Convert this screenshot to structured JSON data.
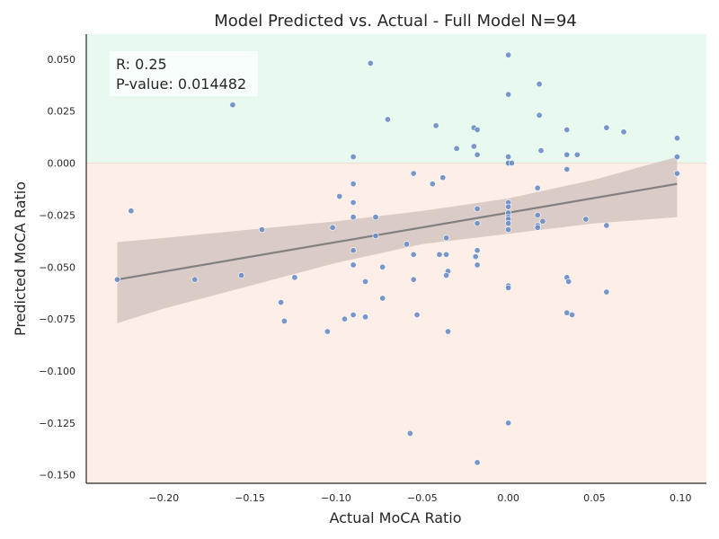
{
  "chart_data": {
    "type": "scatter",
    "title": "Model Predicted vs. Actual - Full Model  N=94",
    "xlabel": "Actual MoCA Ratio",
    "ylabel": "Predicted MoCA Ratio",
    "xlim": [
      -0.245,
      0.115
    ],
    "ylim": [
      -0.154,
      0.062
    ],
    "xticks": [
      -0.2,
      -0.15,
      -0.1,
      -0.05,
      0.0,
      0.05,
      0.1
    ],
    "xtick_labels": [
      "−0.20",
      "−0.15",
      "−0.10",
      "−0.05",
      "0.00",
      "0.05",
      "0.10"
    ],
    "yticks": [
      0.05,
      0.025,
      0.0,
      -0.025,
      -0.05,
      -0.075,
      -0.1,
      -0.125,
      -0.15
    ],
    "ytick_labels": [
      "0.050",
      "0.025",
      "0.000",
      "−0.025",
      "−0.050",
      "−0.075",
      "−0.100",
      "−0.125",
      "−0.150"
    ],
    "grid": false,
    "background_regions": [
      {
        "y_from": 0.0,
        "y_to": 0.062,
        "color": "#e8faf0"
      },
      {
        "y_from": -0.154,
        "y_to": 0.0,
        "color": "#fdeee8"
      }
    ],
    "annotation": {
      "r_text": "R: 0.25",
      "p_text": "P-value: 0.014482",
      "position": "top-left"
    },
    "regression": {
      "x": [
        -0.227,
        0.098
      ],
      "y": [
        -0.056,
        -0.01
      ],
      "color": "#808080",
      "ci": {
        "x": [
          -0.227,
          -0.2,
          -0.15,
          -0.1,
          -0.05,
          0.0,
          0.05,
          0.098
        ],
        "upper": [
          -0.038,
          -0.036,
          -0.032,
          -0.028,
          -0.023,
          -0.017,
          -0.008,
          0.003
        ],
        "lower": [
          -0.077,
          -0.07,
          -0.059,
          -0.048,
          -0.039,
          -0.034,
          -0.029,
          -0.026
        ],
        "color": "#d4c4bf"
      }
    },
    "series": [
      {
        "color": "#6a8cc5",
        "points": [
          [
            0.0,
            0.052
          ],
          [
            -0.08,
            0.048
          ],
          [
            0.018,
            0.038
          ],
          [
            0.0,
            0.033
          ],
          [
            -0.16,
            0.028
          ],
          [
            0.018,
            0.023
          ],
          [
            -0.07,
            0.021
          ],
          [
            -0.042,
            0.018
          ],
          [
            -0.02,
            0.017
          ],
          [
            -0.018,
            0.016
          ],
          [
            0.034,
            0.016
          ],
          [
            0.057,
            0.017
          ],
          [
            0.067,
            0.015
          ],
          [
            0.098,
            0.012
          ],
          [
            -0.03,
            0.007
          ],
          [
            -0.02,
            0.008
          ],
          [
            0.019,
            0.006
          ],
          [
            -0.09,
            0.003
          ],
          [
            -0.018,
            0.004
          ],
          [
            0.0,
            0.003
          ],
          [
            0.034,
            0.004
          ],
          [
            0.04,
            0.004
          ],
          [
            0.098,
            0.003
          ],
          [
            0.0,
            0.0
          ],
          [
            0.0,
            0.0
          ],
          [
            0.034,
            -0.003
          ],
          [
            -0.055,
            -0.005
          ],
          [
            0.098,
            -0.005
          ],
          [
            -0.038,
            -0.007
          ],
          [
            -0.09,
            -0.01
          ],
          [
            -0.044,
            -0.01
          ],
          [
            0.017,
            -0.012
          ],
          [
            -0.098,
            -0.016
          ],
          [
            -0.09,
            -0.019
          ],
          [
            0.0,
            -0.019
          ],
          [
            0.0,
            -0.021
          ],
          [
            -0.018,
            -0.022
          ],
          [
            -0.219,
            -0.023
          ],
          [
            0.0,
            -0.024
          ],
          [
            0.017,
            -0.025
          ],
          [
            -0.09,
            -0.026
          ],
          [
            -0.077,
            -0.026
          ],
          [
            0.0,
            -0.026
          ],
          [
            0.0,
            -0.027
          ],
          [
            0.045,
            -0.027
          ],
          [
            -0.018,
            -0.029
          ],
          [
            0.0,
            -0.029
          ],
          [
            0.02,
            -0.028
          ],
          [
            0.017,
            -0.03
          ],
          [
            0.057,
            -0.03
          ],
          [
            -0.102,
            -0.031
          ],
          [
            0.017,
            -0.031
          ],
          [
            0.0,
            -0.032
          ],
          [
            -0.143,
            -0.032
          ],
          [
            -0.077,
            -0.035
          ],
          [
            -0.036,
            -0.036
          ],
          [
            -0.059,
            -0.039
          ],
          [
            -0.018,
            -0.042
          ],
          [
            -0.09,
            -0.042
          ],
          [
            -0.04,
            -0.044
          ],
          [
            -0.036,
            -0.044
          ],
          [
            -0.055,
            -0.044
          ],
          [
            -0.019,
            -0.045
          ],
          [
            -0.09,
            -0.049
          ],
          [
            -0.018,
            -0.049
          ],
          [
            -0.073,
            -0.05
          ],
          [
            -0.035,
            -0.052
          ],
          [
            -0.155,
            -0.054
          ],
          [
            -0.036,
            -0.054
          ],
          [
            -0.124,
            -0.055
          ],
          [
            0.034,
            -0.055
          ],
          [
            -0.227,
            -0.056
          ],
          [
            -0.182,
            -0.056
          ],
          [
            -0.055,
            -0.056
          ],
          [
            -0.083,
            -0.057
          ],
          [
            0.035,
            -0.057
          ],
          [
            0.0,
            -0.059
          ],
          [
            0.0,
            -0.06
          ],
          [
            0.057,
            -0.062
          ],
          [
            -0.073,
            -0.065
          ],
          [
            -0.132,
            -0.067
          ],
          [
            0.034,
            -0.072
          ],
          [
            0.037,
            -0.073
          ],
          [
            -0.053,
            -0.073
          ],
          [
            -0.09,
            -0.073
          ],
          [
            -0.083,
            -0.074
          ],
          [
            -0.095,
            -0.075
          ],
          [
            -0.13,
            -0.076
          ],
          [
            -0.105,
            -0.081
          ],
          [
            -0.035,
            -0.081
          ],
          [
            0.0,
            -0.125
          ],
          [
            -0.057,
            -0.13
          ],
          [
            -0.018,
            -0.144
          ],
          [
            0.002,
            0.0
          ]
        ]
      }
    ]
  }
}
